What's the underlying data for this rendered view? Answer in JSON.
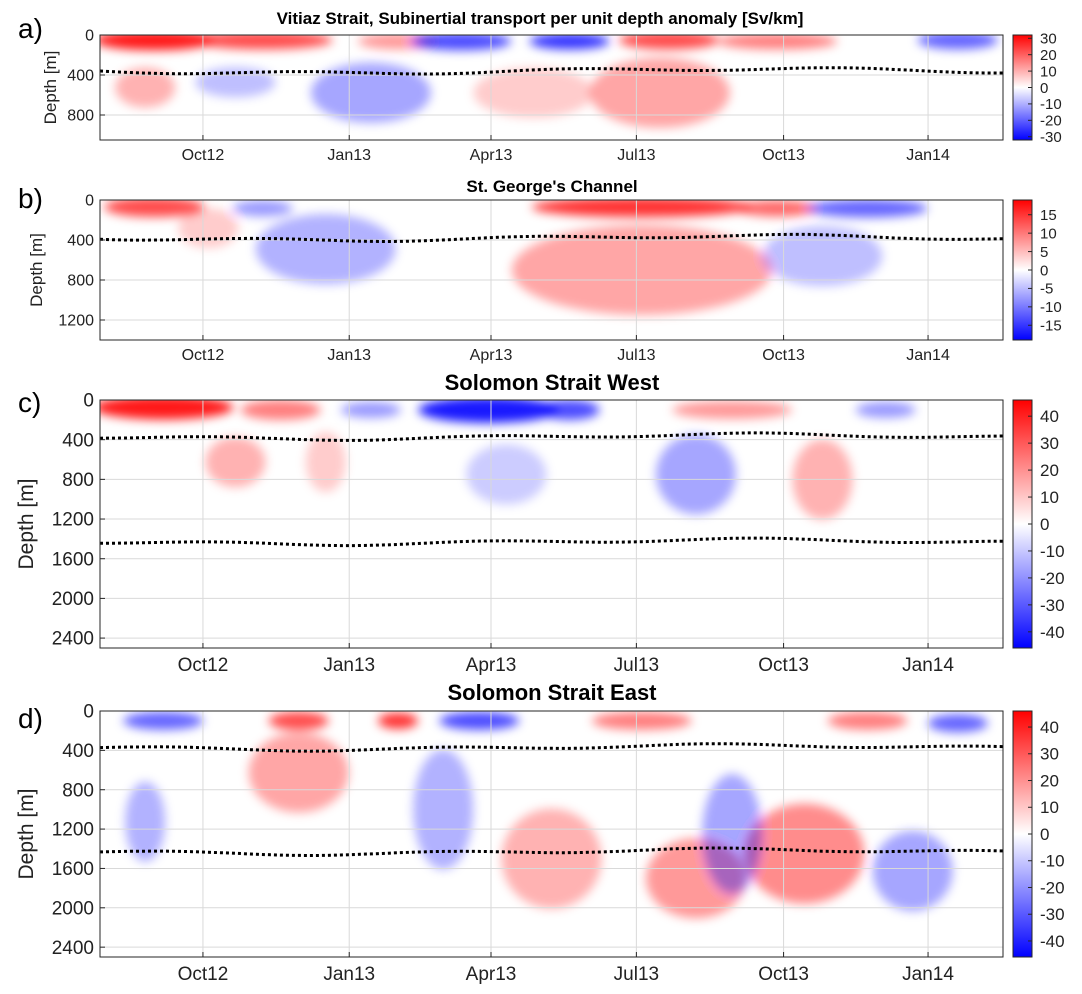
{
  "figure": {
    "title": "Vitiaz Strait, Subinertial transport per unit depth anomaly [Sv/km]"
  },
  "colors": {
    "positive": "#ff0000",
    "negative": "#0000ff",
    "zero": "#ffffff",
    "isopycnal_line": "#000000",
    "grid": "#d9d9d9"
  },
  "x_ticks": [
    "Oct12",
    "Jan13",
    "Apr13",
    "Jul13",
    "Oct13",
    "Jan14"
  ],
  "chart_data": [
    {
      "type": "heatmap",
      "panel_label": "a)",
      "title": "Vitiaz Strait, Subinertial transport per unit depth anomaly [Sv/km]",
      "ylabel": "Depth [m]",
      "x_ticks": [
        "Oct12",
        "Jan13",
        "Apr13",
        "Jul13",
        "Oct13",
        "Jan14"
      ],
      "y_ticks": [
        "0",
        "400",
        "800"
      ],
      "ylim": [
        0,
        1050
      ],
      "y_reversed": true,
      "colorbar_ticks": [
        "30",
        "20",
        "10",
        "0",
        "-10",
        "-20",
        "-30"
      ],
      "clim": [
        -32,
        32
      ],
      "isopycnal_depths_m": [
        360
      ],
      "grid": true
    },
    {
      "type": "heatmap",
      "panel_label": "b)",
      "title": "St. George's Channel",
      "ylabel": "Depth [m]",
      "x_ticks": [
        "Oct12",
        "Jan13",
        "Apr13",
        "Jul13",
        "Oct13",
        "Jan14"
      ],
      "y_ticks": [
        "0",
        "400",
        "800",
        "1200"
      ],
      "ylim": [
        0,
        1400
      ],
      "y_reversed": true,
      "colorbar_ticks": [
        "15",
        "10",
        "5",
        "0",
        "-5",
        "-10",
        "-15"
      ],
      "clim": [
        -19,
        19
      ],
      "isopycnal_depths_m": [
        380
      ],
      "grid": true
    },
    {
      "type": "heatmap",
      "panel_label": "c)",
      "title": "Solomon Strait West",
      "ylabel": "Depth [m]",
      "x_ticks": [
        "Oct12",
        "Jan13",
        "Apr13",
        "Jul13",
        "Oct13",
        "Jan14"
      ],
      "y_ticks": [
        "0",
        "400",
        "800",
        "1200",
        "1600",
        "2000",
        "2400"
      ],
      "ylim": [
        0,
        2500
      ],
      "y_reversed": true,
      "colorbar_ticks": [
        "40",
        "30",
        "20",
        "10",
        "0",
        "-10",
        "-20",
        "-30",
        "-40"
      ],
      "clim": [
        -46,
        46
      ],
      "isopycnal_depths_m": [
        370,
        1430
      ],
      "grid": true
    },
    {
      "type": "heatmap",
      "panel_label": "d)",
      "title": "Solomon Strait East",
      "ylabel": "Depth [m]",
      "x_ticks": [
        "Oct12",
        "Jan13",
        "Apr13",
        "Jul13",
        "Oct13",
        "Jan14"
      ],
      "y_ticks": [
        "0",
        "400",
        "800",
        "1200",
        "1600",
        "2000",
        "2400"
      ],
      "ylim": [
        0,
        2500
      ],
      "y_reversed": true,
      "colorbar_ticks": [
        "40",
        "30",
        "20",
        "10",
        "0",
        "-10",
        "-20",
        "-30",
        "-40"
      ],
      "clim": [
        -46,
        46
      ],
      "isopycnal_depths_m": [
        370,
        1430
      ],
      "grid": true
    }
  ]
}
